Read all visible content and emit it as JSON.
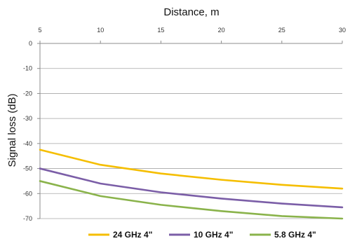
{
  "chart_data": {
    "type": "line",
    "xlabel": "Distance, m",
    "ylabel": "Signal loss (dB)",
    "x": [
      5,
      10,
      15,
      20,
      25,
      30
    ],
    "xlim": [
      5,
      30
    ],
    "ylim": [
      -70,
      0
    ],
    "x_ticks": [
      "5",
      "10",
      "15",
      "20",
      "25",
      "30"
    ],
    "y_ticks": [
      "0",
      "-10",
      "-20",
      "-30",
      "-40",
      "-50",
      "-60",
      "-70"
    ],
    "y_tick_values": [
      0,
      -10,
      -20,
      -30,
      -40,
      -50,
      -60,
      -70
    ],
    "x_axis_position": "top",
    "grid": "horizontal",
    "legend_position": "bottom",
    "series": [
      {
        "name": "24 GHz 4\"",
        "color": "#f5be00",
        "values": [
          -42.5,
          -48.5,
          -52.0,
          -54.5,
          -56.5,
          -58.0
        ]
      },
      {
        "name": "10 GHz 4\"",
        "color": "#7b5ea7",
        "values": [
          -50.0,
          -56.0,
          -59.5,
          -62.0,
          -64.0,
          -65.5
        ]
      },
      {
        "name": "5.8 GHz 4\"",
        "color": "#8ab34b",
        "values": [
          -55.0,
          -61.0,
          -64.5,
          -67.0,
          -69.0,
          -70.0
        ]
      }
    ]
  }
}
